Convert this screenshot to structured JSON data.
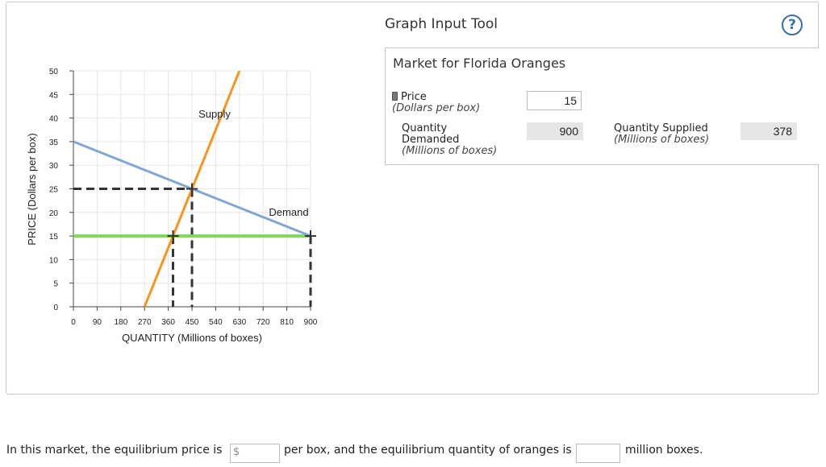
{
  "graph_tool": {
    "title": "Graph Input Tool",
    "help_label": "?"
  },
  "market": {
    "title": "Market for Florida Oranges",
    "price_label": "Price",
    "price_unit": "(Dollars per box)",
    "price_value": "15",
    "qd_label_line1": "Quantity",
    "qd_label_line2": "Demanded",
    "qd_unit": "(Millions of boxes)",
    "qd_value": "900",
    "qs_label": "Quantity Supplied",
    "qs_unit": "(Millions of boxes)",
    "qs_value": "378"
  },
  "question": {
    "part1": "In this market, the equilibrium price is",
    "price_prefix": "$",
    "part2": "per box, and the equilibrium quantity of oranges is",
    "part3": "million boxes."
  },
  "colors": {
    "supply": "#f7941d",
    "demand": "#7fa9d1",
    "price_line": "#7ed957",
    "dashed": "#333333"
  },
  "chart_data": {
    "type": "line",
    "xlabel": "QUANTITY (Millions of boxes)",
    "ylabel": "PRICE (Dollars per box)",
    "xlim": [
      0,
      900
    ],
    "ylim": [
      0,
      50
    ],
    "xticks": [
      0,
      90,
      180,
      270,
      360,
      450,
      540,
      630,
      720,
      810,
      900
    ],
    "yticks": [
      0,
      5,
      10,
      15,
      20,
      25,
      30,
      35,
      40,
      45,
      50
    ],
    "grid": true,
    "series": [
      {
        "name": "Supply",
        "points": [
          [
            270,
            0
          ],
          [
            630,
            50
          ]
        ]
      },
      {
        "name": "Demand",
        "points": [
          [
            0,
            35
          ],
          [
            900,
            15
          ]
        ]
      }
    ],
    "price_line": {
      "y": 15,
      "x": [
        0,
        900
      ]
    },
    "equilibrium": {
      "x": 450,
      "y": 25
    },
    "quantity_supplied_marker": {
      "x": 378,
      "y": 15
    },
    "quantity_demanded_marker": {
      "x": 900,
      "y": 15
    }
  }
}
